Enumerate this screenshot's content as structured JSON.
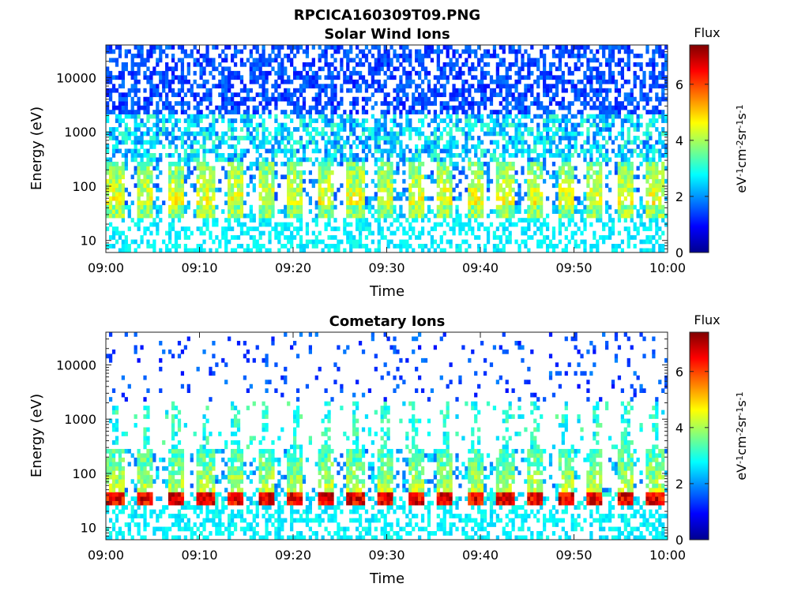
{
  "figure_title": "RPCICA160309T09.PNG",
  "chart_data": [
    {
      "type": "heatmap",
      "title": "Solar Wind Ions",
      "xlabel": "Time",
      "ylabel": "Energy (eV)",
      "x_range": [
        "09:00",
        "10:00"
      ],
      "x_ticks": [
        "09:00",
        "09:10",
        "09:20",
        "09:30",
        "09:40",
        "09:50",
        "10:00"
      ],
      "y_scale": "log",
      "y_range": [
        6,
        40000
      ],
      "y_ticks": [
        "10",
        "100",
        "1000",
        "10000"
      ],
      "y_tick_values": [
        10,
        100,
        1000,
        10000
      ],
      "colorbar": {
        "title": "Flux",
        "label": "eV-1cm-2sr-1s-1",
        "label_parts": [
          {
            "t": "eV",
            "sup": false
          },
          {
            "t": "-1",
            "sup": true
          },
          {
            "t": "cm",
            "sup": false
          },
          {
            "t": "-2",
            "sup": true
          },
          {
            "t": "sr",
            "sup": false
          },
          {
            "t": "-1",
            "sup": true
          },
          {
            "t": "s",
            "sup": false
          },
          {
            "t": "-1",
            "sup": true
          }
        ],
        "range": [
          0,
          7.4
        ],
        "ticks": [
          "0",
          "2",
          "4",
          "6"
        ],
        "colormap": "jet"
      },
      "pattern": {
        "cycle_minutes": 3.2,
        "band_energy_ev": [
          24,
          42
        ],
        "band_flux": 3.8,
        "burst_flux": 4.6,
        "background_flux": 2.0,
        "high_energy_density": 0.55
      }
    },
    {
      "type": "heatmap",
      "title": "Cometary Ions",
      "xlabel": "Time",
      "ylabel": "Energy (eV)",
      "x_range": [
        "09:00",
        "10:00"
      ],
      "x_ticks": [
        "09:00",
        "09:10",
        "09:20",
        "09:30",
        "09:40",
        "09:50",
        "10:00"
      ],
      "y_scale": "log",
      "y_range": [
        6,
        40000
      ],
      "y_ticks": [
        "10",
        "100",
        "1000",
        "10000"
      ],
      "y_tick_values": [
        10,
        100,
        1000,
        10000
      ],
      "colorbar": {
        "title": "Flux",
        "label": "eV-1cm-2sr-1s-1",
        "label_parts": [
          {
            "t": "eV",
            "sup": false
          },
          {
            "t": "-1",
            "sup": true
          },
          {
            "t": "cm",
            "sup": false
          },
          {
            "t": "-2",
            "sup": true
          },
          {
            "t": "sr",
            "sup": false
          },
          {
            "t": "-1",
            "sup": true
          },
          {
            "t": "s",
            "sup": false
          },
          {
            "t": "-1",
            "sup": true
          }
        ],
        "range": [
          0,
          7.4
        ],
        "ticks": [
          "0",
          "2",
          "4",
          "6"
        ],
        "colormap": "jet"
      },
      "pattern": {
        "cycle_minutes": 3.2,
        "band_energy_ev": [
          24,
          42
        ],
        "band_flux": 6.6,
        "burst_flux": 4.2,
        "background_flux": 2.2,
        "high_energy_density": 0.08
      }
    }
  ]
}
